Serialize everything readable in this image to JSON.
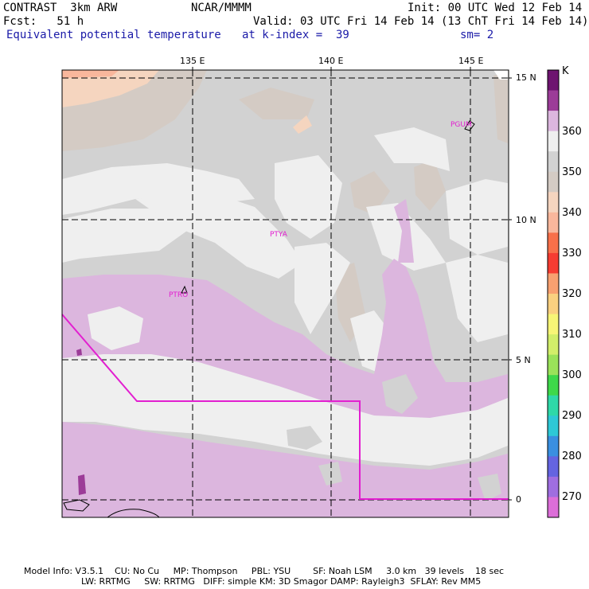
{
  "header": {
    "model": "CONTRAST  3km ARW",
    "org": "NCAR/MMMM",
    "init": "Init: 00 UTC Wed 12 Feb 14",
    "fcst": "Fcst:   51 h",
    "valid": "Valid: 03 UTC Fri 14 Feb 14 (13 ChT Fri 14 Feb 14)",
    "field": "Equivalent potential temperature",
    "level": "at k-index =  39",
    "smooth": "sm= 2"
  },
  "map": {
    "lon_labels": [
      "135 E",
      "140 E",
      "145 E"
    ],
    "lat_labels": [
      "15 N",
      "10 N",
      "5 N",
      "0"
    ],
    "stations": [
      "PGUM",
      "PTYA",
      "PTRO"
    ]
  },
  "colorbar": {
    "unit": "K",
    "labels": [
      "360",
      "350",
      "340",
      "330",
      "320",
      "310",
      "300",
      "290",
      "280",
      "270"
    ],
    "colors": [
      "#6e1470",
      "#9c3c98",
      "#dcb6de",
      "#efefef",
      "#d2d2d2",
      "#d4cbc4",
      "#f5d5bf",
      "#f9b79c",
      "#f8704a",
      "#f63c32",
      "#f8a070",
      "#fad080",
      "#f7f576",
      "#d2ee6a",
      "#9ae25a",
      "#3ed84a",
      "#2fd8a8",
      "#2ec8d6",
      "#3a8fe0",
      "#6464e0",
      "#9f6ee0",
      "#dc6ed8"
    ]
  },
  "footer": {
    "line1": "Model Info: V3.5.1    CU: No Cu     MP: Thompson     PBL: YSU        SF: Noah LSM     3.0 km   39 levels    18 sec",
    "line2": "LW: RRTMG     SW: RRTMG   DIFF: simple KM: 3D Smagor DAMP: Rayleigh3  SFLAY: Rev MM5"
  }
}
